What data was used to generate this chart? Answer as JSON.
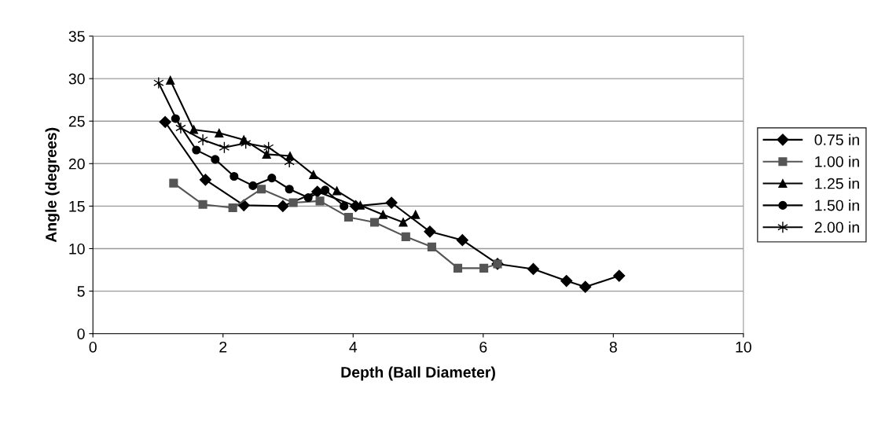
{
  "chart_data": {
    "type": "line",
    "xlabel": "Depth (Ball Diameter)",
    "ylabel": "Angle (degrees)",
    "xlim": [
      0,
      10
    ],
    "xticks": [
      0,
      2,
      4,
      6,
      8,
      10
    ],
    "ylim": [
      0,
      35
    ],
    "yticks": [
      0,
      5,
      10,
      15,
      20,
      25,
      30,
      35
    ],
    "grid": "y",
    "legend": "right",
    "line_style": "solid",
    "series": [
      {
        "name": "0.75 in",
        "color": "#000000",
        "marker": "diamond",
        "x": [
          1.11,
          1.73,
          2.32,
          2.92,
          3.45,
          4.04,
          4.59,
          5.18,
          5.68,
          6.22,
          6.77,
          7.28,
          7.57,
          8.09
        ],
        "values": [
          24.9,
          18.1,
          15.1,
          15.0,
          16.7,
          15.0,
          15.4,
          12.0,
          11.0,
          8.2,
          7.6,
          6.2,
          5.5,
          6.8
        ]
      },
      {
        "name": "1.00 in",
        "color": "#555555",
        "marker": "square",
        "x": [
          1.24,
          1.69,
          2.15,
          2.59,
          3.08,
          3.49,
          3.93,
          4.33,
          4.81,
          5.21,
          5.61,
          6.01,
          6.22
        ],
        "values": [
          17.7,
          15.2,
          14.8,
          17.0,
          15.4,
          15.6,
          13.7,
          13.1,
          11.4,
          10.2,
          7.7,
          7.7,
          8.2
        ]
      },
      {
        "name": "1.25 in",
        "color": "#000000",
        "marker": "triangle",
        "x": [
          1.19,
          1.55,
          1.94,
          2.32,
          2.67,
          3.03,
          3.39,
          3.75,
          4.11,
          4.46,
          4.77,
          4.96
        ],
        "values": [
          29.8,
          24.0,
          23.6,
          22.8,
          21.1,
          20.9,
          18.7,
          16.8,
          15.1,
          14.0,
          13.1,
          14.0
        ]
      },
      {
        "name": "1.50 in",
        "color": "#000000",
        "marker": "circle",
        "x": [
          1.27,
          1.59,
          1.88,
          2.17,
          2.46,
          2.75,
          3.02,
          3.31,
          3.57,
          3.86
        ],
        "values": [
          25.3,
          21.6,
          20.5,
          18.5,
          17.4,
          18.3,
          17.0,
          16.0,
          16.9,
          15.0
        ]
      },
      {
        "name": "2.00 in",
        "color": "#000000",
        "marker": "cross",
        "x": [
          1.01,
          1.35,
          1.69,
          2.02,
          2.35,
          2.7,
          3.02
        ],
        "values": [
          29.5,
          24.2,
          22.8,
          21.9,
          22.4,
          21.9,
          20.2
        ]
      }
    ]
  }
}
